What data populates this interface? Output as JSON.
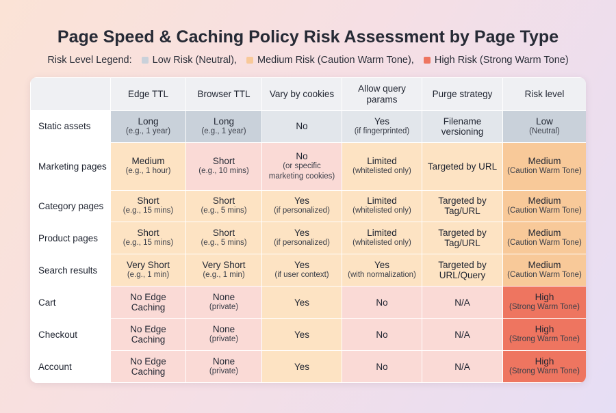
{
  "title": "Page Speed & Caching Policy Risk Assessment by Page Type",
  "legend": {
    "label": "Risk Level Legend:",
    "items": [
      {
        "label": "Low Risk (Neutral),",
        "color": "#c9d1da"
      },
      {
        "label": "Medium Risk (Caution Warm Tone),",
        "color": "#f8c999"
      },
      {
        "label": "High Risk (Strong Warm Tone)",
        "color": "#ee7560"
      }
    ]
  },
  "chart_data": {
    "type": "table",
    "title": "Page Speed & Caching Policy Risk Assessment by Page Type",
    "columns": [
      "",
      "Edge TTL",
      "Browser TTL",
      "Vary by cookies",
      "Allow query params",
      "Purge strategy",
      "Risk level"
    ],
    "colors": {
      "n": "#c9d1da",
      "g": "#e2e6eb",
      "o": "#fde3c3",
      "p": "#fadad6",
      "m": "#f8c999",
      "h": "#ee7560"
    },
    "rows": [
      {
        "label": "Static assets",
        "cells": [
          {
            "main": "Long",
            "sub": "(e.g., 1 year)",
            "tone": "n"
          },
          {
            "main": "Long",
            "sub": "(e.g., 1 year)",
            "tone": "n"
          },
          {
            "main": "No",
            "sub": "",
            "tone": "g"
          },
          {
            "main": "Yes",
            "sub": "(if fingerprinted)",
            "tone": "g"
          },
          {
            "main": "Filename versioning",
            "sub": "",
            "tone": "g"
          },
          {
            "main": "Low",
            "sub": "(Neutral)",
            "tone": "n"
          }
        ]
      },
      {
        "label": "Marketing pages",
        "cells": [
          {
            "main": "Medium",
            "sub": "(e.g., 1 hour)",
            "tone": "o"
          },
          {
            "main": "Short",
            "sub": "(e.g., 10 mins)",
            "tone": "p"
          },
          {
            "main": "No",
            "sub": "(or specific marketing cookies)",
            "tone": "p"
          },
          {
            "main": "Limited",
            "sub": "(whitelisted only)",
            "tone": "o"
          },
          {
            "main": "Targeted by URL",
            "sub": "",
            "tone": "o"
          },
          {
            "main": "Medium",
            "sub": "(Caution Warm Tone)",
            "tone": "m"
          }
        ]
      },
      {
        "label": "Category pages",
        "cells": [
          {
            "main": "Short",
            "sub": "(e.g., 15 mins)",
            "tone": "o"
          },
          {
            "main": "Short",
            "sub": "(e.g., 5 mins)",
            "tone": "o"
          },
          {
            "main": "Yes",
            "sub": "(if personalized)",
            "tone": "o"
          },
          {
            "main": "Limited",
            "sub": "(whitelisted only)",
            "tone": "o"
          },
          {
            "main": "Targeted by Tag/URL",
            "sub": "",
            "tone": "o"
          },
          {
            "main": "Medium",
            "sub": "(Caution Warm Tone)",
            "tone": "m"
          }
        ]
      },
      {
        "label": "Product pages",
        "cells": [
          {
            "main": "Short",
            "sub": "(e.g., 15 mins)",
            "tone": "o"
          },
          {
            "main": "Short",
            "sub": "(e.g., 5 mins)",
            "tone": "o"
          },
          {
            "main": "Yes",
            "sub": "(if personalized)",
            "tone": "o"
          },
          {
            "main": "Limited",
            "sub": "(whitelisted only)",
            "tone": "o"
          },
          {
            "main": "Targeted by Tag/URL",
            "sub": "",
            "tone": "o"
          },
          {
            "main": "Medium",
            "sub": "(Caution Warm Tone)",
            "tone": "m"
          }
        ]
      },
      {
        "label": "Search results",
        "cells": [
          {
            "main": "Very Short",
            "sub": "(e.g., 1 min)",
            "tone": "o"
          },
          {
            "main": "Very Short",
            "sub": "(e.g., 1 min)",
            "tone": "o"
          },
          {
            "main": "Yes",
            "sub": "(if user context)",
            "tone": "o"
          },
          {
            "main": "Yes",
            "sub": "(with normalization)",
            "tone": "o"
          },
          {
            "main": "Targeted by URL/Query",
            "sub": "",
            "tone": "o"
          },
          {
            "main": "Medium",
            "sub": "(Caution Warm Tone)",
            "tone": "m"
          }
        ]
      },
      {
        "label": "Cart",
        "cells": [
          {
            "main": "No Edge Caching",
            "sub": "",
            "tone": "p"
          },
          {
            "main": "None",
            "sub": "(private)",
            "tone": "p"
          },
          {
            "main": "Yes",
            "sub": "",
            "tone": "o"
          },
          {
            "main": "No",
            "sub": "",
            "tone": "p"
          },
          {
            "main": "N/A",
            "sub": "",
            "tone": "p"
          },
          {
            "main": "High",
            "sub": "(Strong Warm Tone)",
            "tone": "h"
          }
        ]
      },
      {
        "label": "Checkout",
        "cells": [
          {
            "main": "No Edge Caching",
            "sub": "",
            "tone": "p"
          },
          {
            "main": "None",
            "sub": "(private)",
            "tone": "p"
          },
          {
            "main": "Yes",
            "sub": "",
            "tone": "o"
          },
          {
            "main": "No",
            "sub": "",
            "tone": "p"
          },
          {
            "main": "N/A",
            "sub": "",
            "tone": "p"
          },
          {
            "main": "High",
            "sub": "(Strong Warm Tone)",
            "tone": "h"
          }
        ]
      },
      {
        "label": "Account",
        "cells": [
          {
            "main": "No Edge Caching",
            "sub": "",
            "tone": "p"
          },
          {
            "main": "None",
            "sub": "(private)",
            "tone": "p"
          },
          {
            "main": "Yes",
            "sub": "",
            "tone": "o"
          },
          {
            "main": "No",
            "sub": "",
            "tone": "p"
          },
          {
            "main": "N/A",
            "sub": "",
            "tone": "p"
          },
          {
            "main": "High",
            "sub": "(Strong Warm Tone)",
            "tone": "h"
          }
        ]
      }
    ]
  }
}
